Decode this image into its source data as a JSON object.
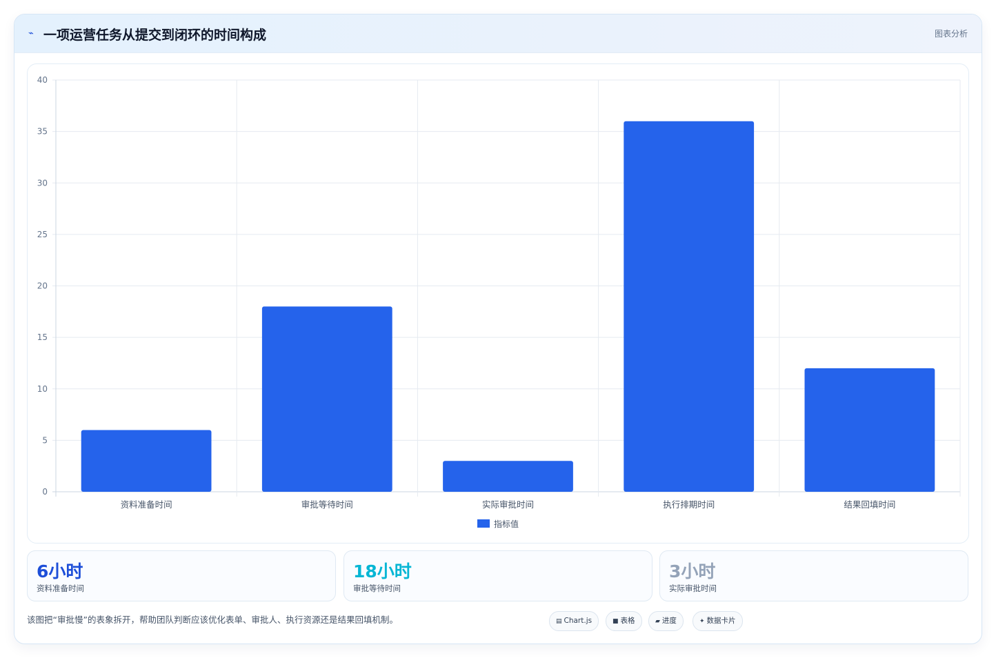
{
  "header": {
    "icon": "pulse-icon",
    "title": "一项运营任务从提交到闭环的时间构成",
    "link_label": "图表分析"
  },
  "chart_data": {
    "type": "bar",
    "categories": [
      "资料准备时间",
      "审批等待时间",
      "实际审批时间",
      "执行排期时间",
      "结果回填时间"
    ],
    "series": [
      {
        "name": "指标值",
        "values": [
          6,
          18,
          3,
          36,
          12
        ],
        "color": "#2563eb"
      }
    ],
    "ylim": [
      0,
      40
    ],
    "yticks": [
      0,
      5,
      10,
      15,
      20,
      25,
      30,
      35,
      40
    ],
    "grid": true,
    "legend_position": "bottom"
  },
  "stats": [
    {
      "value": "6小时",
      "label": "资料准备时间",
      "color": "#1d4ed8"
    },
    {
      "value": "18小时",
      "label": "审批等待时间",
      "color": "#06b6d4"
    },
    {
      "value": "3小时",
      "label": "实际审批时间",
      "color": "#94a3b8"
    }
  ],
  "footnote": "该图把“审批慢”的表象拆开，帮助团队判断应该优化表单、审批人、执行资源还是结果回填机制。",
  "tags": [
    {
      "icon": "chart-icon",
      "glyph": "▤",
      "label": "Chart.js"
    },
    {
      "icon": "table-icon",
      "glyph": "■",
      "label": "表格"
    },
    {
      "icon": "progress-icon",
      "glyph": "▰",
      "label": "进度"
    },
    {
      "icon": "card-icon",
      "glyph": "✦",
      "label": "数据卡片"
    }
  ]
}
